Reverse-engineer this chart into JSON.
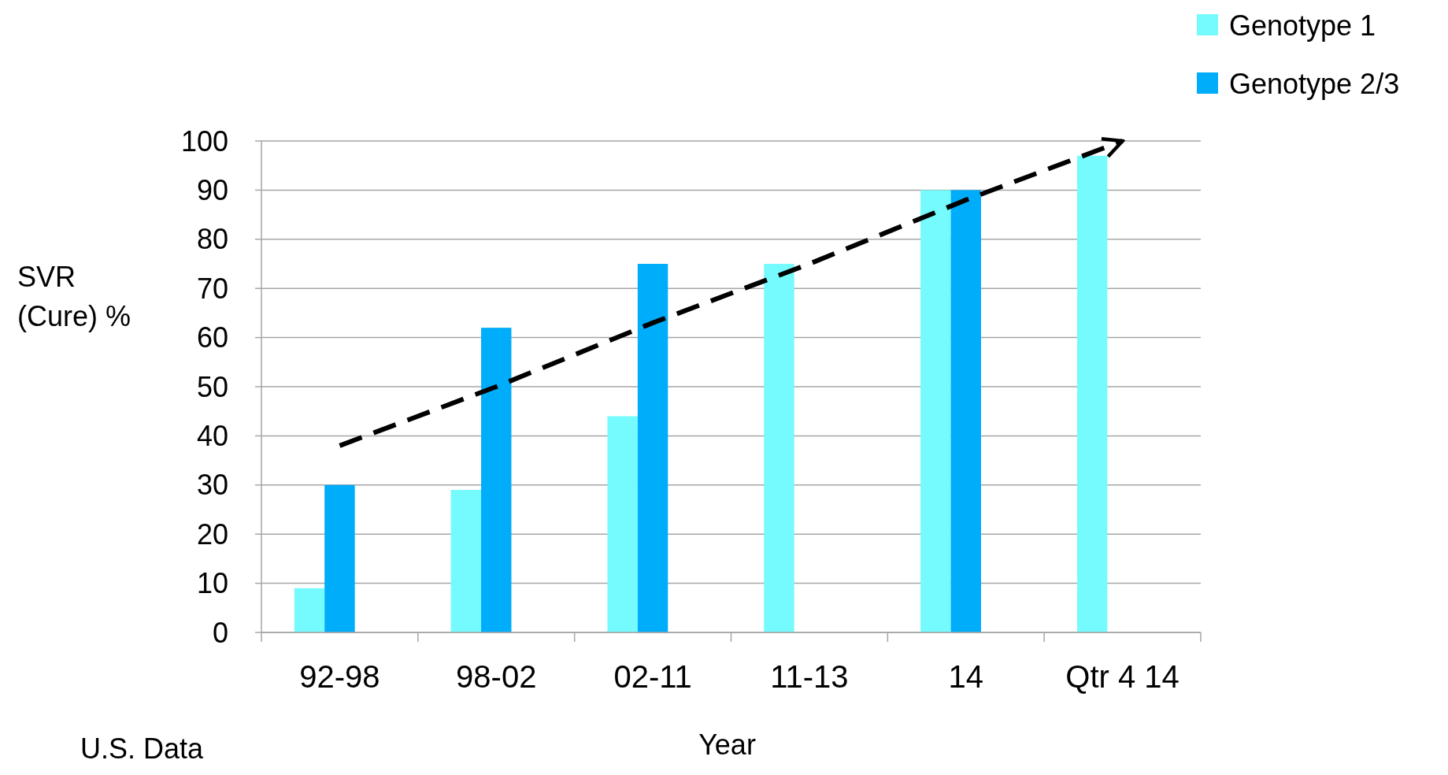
{
  "chart_data": {
    "type": "bar",
    "xlabel": "Year",
    "ylabel": "SVR (Cure) %",
    "annotations": [
      "U.S. Data"
    ],
    "categories": [
      "92-98",
      "98-02",
      "02-11",
      "11-13",
      "14",
      "Qtr 4 14"
    ],
    "series": [
      {
        "name": "Genotype 1",
        "color": "#75fbfd",
        "values": [
          9,
          29,
          44,
          75,
          90,
          97
        ]
      },
      {
        "name": "Genotype 2/3",
        "color": "#00adfa",
        "values": [
          30,
          62,
          75,
          null,
          90,
          null
        ]
      },
      {
        "type": "line",
        "color": "#000000",
        "line_style": "dashed",
        "marker": "none",
        "values": [
          38,
          50,
          63,
          75,
          88,
          100
        ]
      }
    ],
    "ylim": [
      0,
      100
    ],
    "yticks": [
      0,
      10,
      20,
      30,
      40,
      50,
      60,
      70,
      80,
      90,
      100
    ],
    "grid": "y",
    "legend": "top right"
  }
}
